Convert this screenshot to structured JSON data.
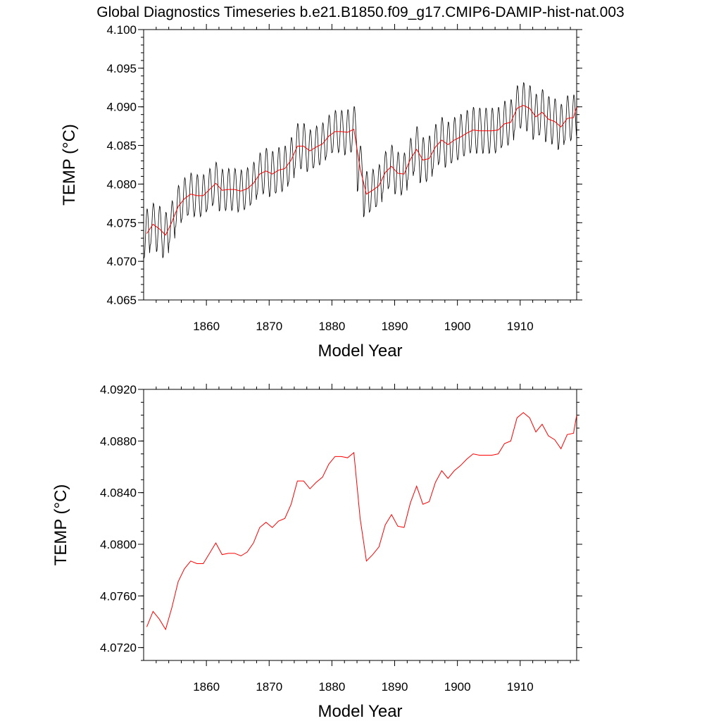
{
  "title": "Global Diagnostics Timeseries b.e21.B1850.f09_g17.CMIP6-DAMIP-hist-nat.003",
  "colors": {
    "monthly": "#000000",
    "annual": "#ff0000",
    "frame": "#000000"
  },
  "chart_data": [
    {
      "type": "line",
      "xlabel": "Model Year",
      "ylabel": "TEMP (°C)",
      "xlim": [
        1850,
        1919
      ],
      "ylim": [
        4.065,
        4.1
      ],
      "x_ticks": [
        "1860",
        "1870",
        "1880",
        "1890",
        "1900",
        "1910"
      ],
      "y_ticks": [
        "4.065",
        "4.070",
        "4.075",
        "4.080",
        "4.085",
        "4.090",
        "4.095",
        "4.100"
      ],
      "grid": false,
      "seasonal_amplitude": [
        0.0065,
        0.0055,
        0.006,
        0.006,
        0.0055,
        0.0055,
        0.0055,
        0.0055,
        0.0055,
        0.0055,
        0.0055,
        0.0055,
        0.0055,
        0.0055,
        0.0055,
        0.0055,
        0.0055,
        0.0055,
        0.0055,
        0.006,
        0.006,
        0.006,
        0.006,
        0.006,
        0.006,
        0.006,
        0.0055,
        0.0055,
        0.0055,
        0.0055,
        0.0055,
        0.0055,
        0.006,
        0.006,
        0.006,
        0.006,
        0.0055,
        0.0055,
        0.0055,
        0.0055,
        0.0055,
        0.0055,
        0.0055,
        0.006,
        0.006,
        0.006,
        0.006,
        0.006,
        0.006,
        0.006,
        0.006,
        0.006,
        0.006,
        0.006,
        0.006,
        0.006,
        0.006,
        0.006,
        0.006,
        0.006,
        0.006,
        0.006,
        0.006,
        0.006,
        0.006,
        0.006,
        0.006,
        0.006,
        0.006,
        0.006
      ],
      "series": [
        {
          "role": "monthly",
          "color": "#000000"
        },
        {
          "role": "annual-mean",
          "color": "#ff0000"
        }
      ]
    },
    {
      "type": "line",
      "xlabel": "Model Year",
      "ylabel": "TEMP (°C)",
      "xlim": [
        1850,
        1919
      ],
      "ylim": [
        4.071,
        4.092
      ],
      "x_ticks": [
        "1860",
        "1870",
        "1880",
        "1890",
        "1900",
        "1910"
      ],
      "y_ticks": [
        "4.0720",
        "4.0760",
        "4.0800",
        "4.0840",
        "4.0880",
        "4.0920"
      ],
      "grid": false,
      "series": [
        {
          "role": "annual-mean",
          "color": "#ff0000",
          "x": [
            1850.5,
            1851.5,
            1852.5,
            1853.5,
            1854.5,
            1855.5,
            1856.5,
            1857.5,
            1858.5,
            1859.5,
            1860.5,
            1861.5,
            1862.5,
            1863.5,
            1864.5,
            1865.5,
            1866.5,
            1867.5,
            1868.5,
            1869.5,
            1870.5,
            1871.5,
            1872.5,
            1873.5,
            1874.5,
            1875.5,
            1876.5,
            1877.5,
            1878.5,
            1879.5,
            1880.5,
            1881.5,
            1882.5,
            1883.5,
            1884.5,
            1885.5,
            1886.5,
            1887.5,
            1888.5,
            1889.5,
            1890.5,
            1891.5,
            1892.5,
            1893.5,
            1894.5,
            1895.5,
            1896.5,
            1897.5,
            1898.5,
            1899.5,
            1900.5,
            1901.5,
            1902.5,
            1903.5,
            1904.5,
            1905.5,
            1906.5,
            1907.5,
            1908.5,
            1909.5,
            1910.5,
            1911.5,
            1912.5,
            1913.5,
            1914.5,
            1915.5,
            1916.5,
            1917.5,
            1918.5
          ],
          "y": [
            4.0736,
            4.0748,
            4.0742,
            4.0734,
            4.0751,
            4.0771,
            4.0781,
            4.0787,
            4.0785,
            4.0785,
            4.0793,
            4.0801,
            4.0792,
            4.0793,
            4.0793,
            4.0791,
            4.0794,
            4.0801,
            4.0813,
            4.0817,
            4.0813,
            4.0818,
            4.082,
            4.0831,
            4.0849,
            4.0849,
            4.0843,
            4.0848,
            4.0852,
            4.0862,
            4.0868,
            4.0868,
            4.0867,
            4.0871,
            4.082,
            4.0787,
            4.0792,
            4.0798,
            4.0815,
            4.0823,
            4.0814,
            4.0813,
            4.0832,
            4.0845,
            4.0831,
            4.0833,
            4.0848,
            4.0857,
            4.0851,
            4.0857,
            4.0861,
            4.0866,
            4.087,
            4.0869,
            4.0869,
            4.0869,
            4.087,
            4.0878,
            4.088,
            4.0898,
            4.0902,
            4.0898,
            4.0887,
            4.0893,
            4.0884,
            4.0881,
            4.0874,
            4.0885,
            4.0886
          ]
        }
      ]
    }
  ],
  "tail_value": 4.09
}
